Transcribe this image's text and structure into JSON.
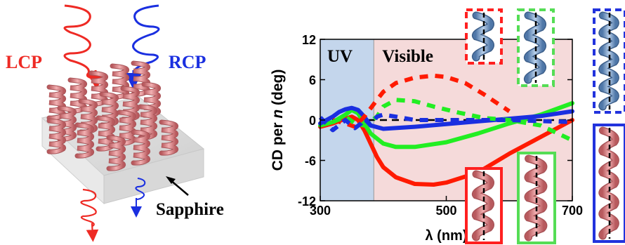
{
  "left_panel": {
    "lcp_label": "LCP",
    "rcp_label": "RCP",
    "substrate_label": "Sapphire",
    "colors": {
      "lcp": "#ee2a24",
      "rcp": "#1a2fe0",
      "helix": "#d9787a",
      "slab": "#dcdcdc"
    }
  },
  "chart_data": {
    "type": "line",
    "xlabel": "λ (nm)",
    "ylabel": "CD per n (deg)",
    "ylabel_parts": {
      "pre": "CD per ",
      "italic": "n",
      "post": " (deg)"
    },
    "xlim": [
      300,
      700
    ],
    "ylim": [
      -12,
      12
    ],
    "x_ticks": [
      300,
      500,
      700
    ],
    "y_ticks": [
      -12,
      -6,
      0,
      6,
      12
    ],
    "regions": [
      {
        "label": "UV",
        "x_range": [
          300,
          385
        ],
        "color": "#c4d6ec"
      },
      {
        "label": "Visible",
        "x_range": [
          385,
          700
        ],
        "color": "#f5dada"
      }
    ],
    "zero_line": {
      "y": 0,
      "style": "dashed",
      "color": "#000000"
    },
    "series": [
      {
        "color": "#ff1a00",
        "style": "solid",
        "x": [
          300,
          320,
          340,
          350,
          360,
          370,
          380,
          390,
          400,
          420,
          450,
          480,
          500,
          550,
          600,
          650,
          700
        ],
        "y": [
          -1,
          -0.5,
          0.2,
          0.5,
          0,
          -1.5,
          -3.5,
          -5.5,
          -7,
          -8.5,
          -9.5,
          -9.6,
          -9.3,
          -7.8,
          -5,
          -2.5,
          0
        ]
      },
      {
        "color": "#22ee22",
        "style": "solid",
        "x": [
          300,
          320,
          340,
          350,
          360,
          370,
          380,
          400,
          420,
          450,
          500,
          550,
          600,
          650,
          700
        ],
        "y": [
          -0.8,
          -0.3,
          0.8,
          1.5,
          1,
          -0.5,
          -2,
          -3.5,
          -4,
          -4,
          -3.3,
          -2,
          -0.5,
          0.8,
          2.5
        ]
      },
      {
        "color": "#1a2fe0",
        "style": "solid",
        "x": [
          300,
          320,
          330,
          340,
          350,
          360,
          370,
          380,
          400,
          450,
          500,
          550,
          600,
          650,
          700
        ],
        "y": [
          -0.5,
          0.5,
          1.2,
          1.6,
          1.8,
          1.5,
          0.5,
          -0.8,
          -1.3,
          -1,
          -0.6,
          -0.2,
          0.2,
          0.6,
          1.3
        ]
      },
      {
        "color": "#ff1a00",
        "style": "dashed",
        "x": [
          320,
          340,
          355,
          370,
          390,
          400,
          420,
          450,
          480,
          500,
          530,
          560,
          600
        ],
        "y": [
          0,
          -0.5,
          -1,
          0.5,
          3,
          4.2,
          5.5,
          6.3,
          6.6,
          6.4,
          5.5,
          3.8,
          1.3
        ]
      },
      {
        "color": "#22ee22",
        "style": "dashed",
        "x": [
          320,
          340,
          355,
          370,
          390,
          400,
          420,
          450,
          480,
          520,
          560,
          600,
          650,
          700
        ],
        "y": [
          -0.3,
          0.5,
          -0.5,
          -0.8,
          0.5,
          2,
          3,
          2.8,
          2,
          1.1,
          0.3,
          0,
          -0.8,
          -3
        ]
      },
      {
        "color": "#1a2fe0",
        "style": "dashed",
        "x": [
          300,
          320,
          340,
          355,
          365,
          370,
          380,
          390,
          400,
          420,
          450,
          500,
          600,
          700
        ],
        "y": [
          0.4,
          -1.5,
          0,
          -1.2,
          -0.5,
          0.2,
          -0.8,
          0.5,
          0.8,
          0.5,
          0,
          0,
          0,
          -0.3
        ]
      }
    ]
  },
  "insets": [
    {
      "border": "#ff2020",
      "style": "dashed",
      "helix_color": "#7a9cc8"
    },
    {
      "border": "#55dd55",
      "style": "dashed",
      "helix_color": "#7a9cc8"
    },
    {
      "border": "#2233dd",
      "style": "dashed",
      "helix_color": "#7a9cc8"
    },
    {
      "border": "#ff2020",
      "style": "solid",
      "helix_color": "#d9787a"
    },
    {
      "border": "#55dd55",
      "style": "solid",
      "helix_color": "#d9787a"
    },
    {
      "border": "#2233dd",
      "style": "solid",
      "helix_color": "#d9787a"
    }
  ]
}
